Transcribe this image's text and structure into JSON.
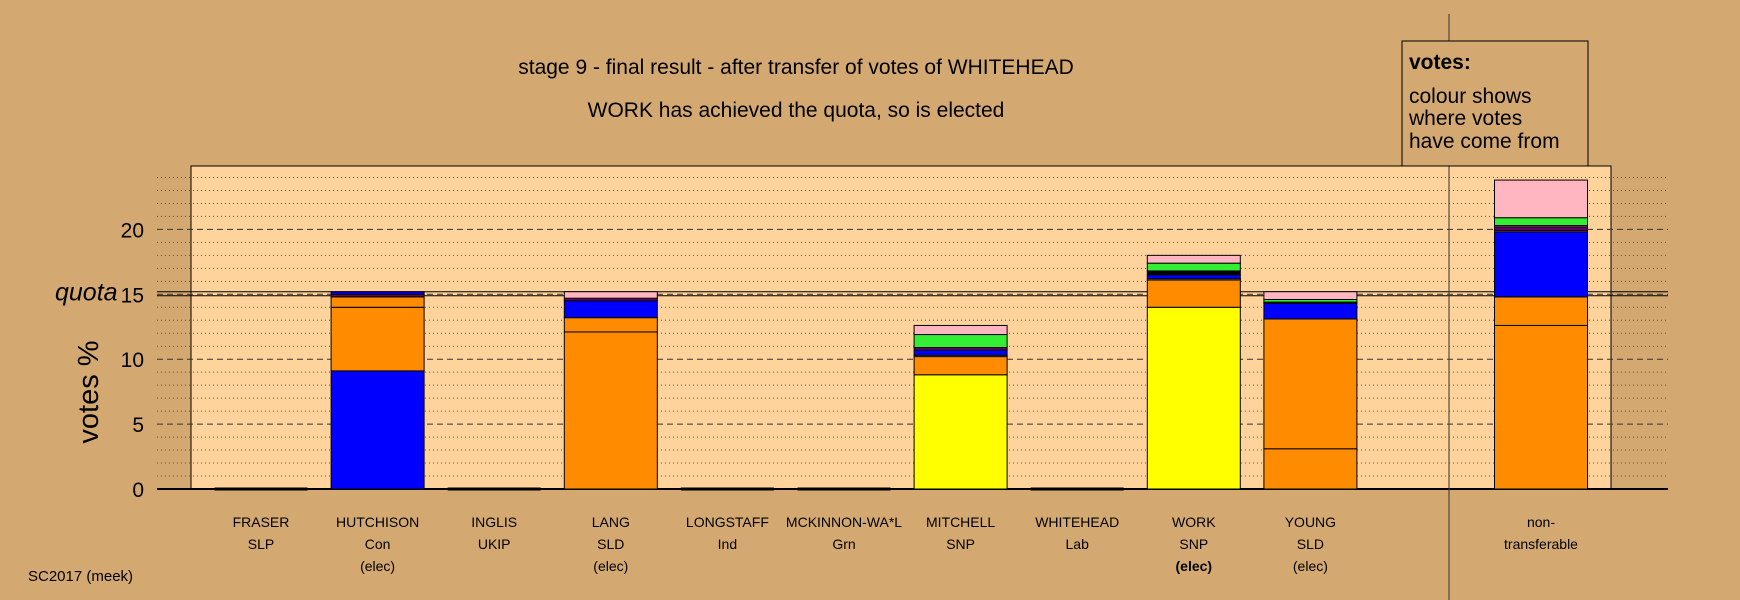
{
  "chart_data": {
    "type": "bar",
    "stacked": true,
    "title": "stage 9 - final result - after transfer of votes of WHITEHEAD",
    "subtitle": "WORK has achieved the quota, so is elected",
    "ylabel": "votes %",
    "ylim": [
      0,
      24
    ],
    "yticks": [
      "0",
      "5",
      "10",
      "15",
      "20"
    ],
    "quota": {
      "label": "quota",
      "value": 15.2
    },
    "grid": true,
    "legend": {
      "position": "top-right",
      "title": "votes:",
      "lines": [
        "colour shows",
        "where votes",
        "have come from"
      ]
    },
    "colors": {
      "orange": "#ff8c00",
      "blue": "#0000ff",
      "yellow": "#ffff00",
      "green": "#33ee33",
      "pink": "#ffb6c1",
      "purple": "#660066",
      "black": "#000000",
      "white": "#ffffff",
      "plot_bg": "#ffd39b",
      "page_bg": "#d4a971"
    },
    "candidates": [
      {
        "name": "FRASER",
        "party": "SLP",
        "status": "",
        "segments": []
      },
      {
        "name": "HUTCHISON",
        "party": "Con",
        "status": "(elec)",
        "status_bold": false,
        "segments": [
          {
            "color": "blue",
            "value": 9.1
          },
          {
            "color": "orange",
            "value": 4.9
          },
          {
            "color": "orange",
            "value": 0.8
          },
          {
            "color": "purple",
            "value": 0.2
          },
          {
            "color": "blue",
            "value": 0.2
          }
        ]
      },
      {
        "name": "INGLIS",
        "party": "UKIP",
        "status": "",
        "segments": []
      },
      {
        "name": "LANG",
        "party": "SLD",
        "status": "(elec)",
        "status_bold": false,
        "segments": [
          {
            "color": "orange",
            "value": 12.1
          },
          {
            "color": "orange",
            "value": 1.1
          },
          {
            "color": "blue",
            "value": 1.3
          },
          {
            "color": "purple",
            "value": 0.2
          },
          {
            "color": "pink",
            "value": 0.5
          }
        ]
      },
      {
        "name": "LONGSTAFF",
        "party": "Ind",
        "status": "",
        "segments": []
      },
      {
        "name": "MCKINNON-WA*L",
        "party": "Grn",
        "status": "",
        "segments": []
      },
      {
        "name": "MITCHELL",
        "party": "SNP",
        "status": "",
        "segments": [
          {
            "color": "yellow",
            "value": 8.8
          },
          {
            "color": "orange",
            "value": 1.4
          },
          {
            "color": "white",
            "value": 0.1
          },
          {
            "color": "blue",
            "value": 0.4
          },
          {
            "color": "purple",
            "value": 0.2
          },
          {
            "color": "green",
            "value": 1.0
          },
          {
            "color": "pink",
            "value": 0.7
          }
        ]
      },
      {
        "name": "WHITEHEAD",
        "party": "Lab",
        "status": "",
        "segments": []
      },
      {
        "name": "WORK",
        "party": "SNP",
        "status": "(elec)",
        "status_bold": true,
        "segments": [
          {
            "color": "yellow",
            "value": 14.0
          },
          {
            "color": "orange",
            "value": 2.1
          },
          {
            "color": "white",
            "value": 0.1
          },
          {
            "color": "blue",
            "value": 0.3
          },
          {
            "color": "black",
            "value": 0.3
          },
          {
            "color": "green",
            "value": 0.6
          },
          {
            "color": "pink",
            "value": 0.6
          }
        ]
      },
      {
        "name": "YOUNG",
        "party": "SLD",
        "status": "(elec)",
        "status_bold": false,
        "segments": [
          {
            "color": "orange",
            "value": 3.1
          },
          {
            "color": "orange",
            "value": 10.0
          },
          {
            "color": "blue",
            "value": 1.2
          },
          {
            "color": "purple",
            "value": 0.1
          },
          {
            "color": "green",
            "value": 0.2
          },
          {
            "color": "pink",
            "value": 0.6
          }
        ]
      }
    ],
    "nontransferable": {
      "line1": "non-",
      "line2": "transferable",
      "segments": [
        {
          "color": "orange",
          "value": 12.6
        },
        {
          "color": "orange",
          "value": 2.2
        },
        {
          "color": "blue",
          "value": 5.0
        },
        {
          "color": "white",
          "value": 0.1
        },
        {
          "color": "purple",
          "value": 0.3
        },
        {
          "color": "pink",
          "value": 0.1
        },
        {
          "color": "green",
          "value": 0.6
        },
        {
          "color": "pink",
          "value": 2.9
        }
      ]
    }
  },
  "footer": {
    "election": "SC2017 (meek)"
  }
}
